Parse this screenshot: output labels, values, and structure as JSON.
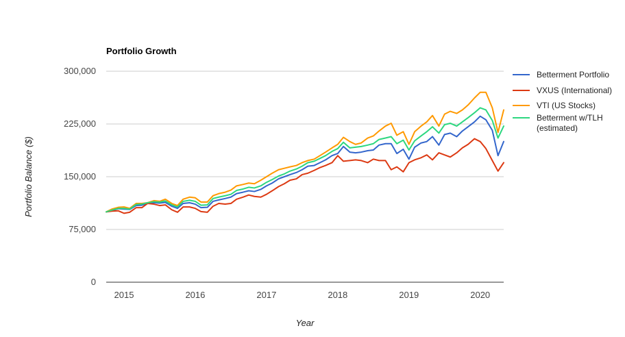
{
  "chart_data": {
    "type": "line",
    "title": "Portfolio Growth",
    "xlabel": "Year",
    "ylabel": "Portfolio Balance ($)",
    "ylim": [
      0,
      300000
    ],
    "yticks": [
      {
        "value": 0,
        "label": "0"
      },
      {
        "value": 75000,
        "label": "75,000"
      },
      {
        "value": 150000,
        "label": "150,000"
      },
      {
        "value": 225000,
        "label": "225,000"
      },
      {
        "value": 300000,
        "label": "300,000"
      }
    ],
    "xlim": [
      2014.75,
      2020.33
    ],
    "xticks": [
      {
        "value": 2015,
        "label": "2015"
      },
      {
        "value": 2016,
        "label": "2016"
      },
      {
        "value": 2017,
        "label": "2017"
      },
      {
        "value": 2018,
        "label": "2018"
      },
      {
        "value": 2019,
        "label": "2019"
      },
      {
        "value": 2020,
        "label": "2020"
      }
    ],
    "grid": true,
    "legend_position": "right",
    "x": [
      2014.75,
      2014.83,
      2014.92,
      2015.0,
      2015.08,
      2015.17,
      2015.25,
      2015.33,
      2015.42,
      2015.5,
      2015.58,
      2015.67,
      2015.75,
      2015.83,
      2015.92,
      2016.0,
      2016.08,
      2016.17,
      2016.25,
      2016.33,
      2016.42,
      2016.5,
      2016.58,
      2016.67,
      2016.75,
      2016.83,
      2016.92,
      2017.0,
      2017.08,
      2017.17,
      2017.25,
      2017.33,
      2017.42,
      2017.5,
      2017.58,
      2017.67,
      2017.75,
      2017.83,
      2017.92,
      2018.0,
      2018.08,
      2018.17,
      2018.25,
      2018.33,
      2018.42,
      2018.5,
      2018.58,
      2018.67,
      2018.75,
      2018.83,
      2018.92,
      2019.0,
      2019.08,
      2019.17,
      2019.25,
      2019.33,
      2019.42,
      2019.5,
      2019.58,
      2019.67,
      2019.75,
      2019.83,
      2019.92,
      2020.0,
      2020.08,
      2020.17,
      2020.25,
      2020.33
    ],
    "series": [
      {
        "name": "Betterment Portfolio",
        "color": "#3366cc",
        "values": [
          100000,
          102000,
          104500,
          104000,
          103500,
          109000,
          109500,
          112000,
          113000,
          112500,
          113500,
          108000,
          105000,
          112000,
          113000,
          111000,
          106000,
          106500,
          115000,
          117000,
          119000,
          121000,
          126000,
          128000,
          130000,
          129000,
          132000,
          137000,
          141000,
          147000,
          150000,
          153000,
          156000,
          160000,
          165000,
          166000,
          170000,
          174000,
          180000,
          183000,
          193000,
          185000,
          184000,
          185000,
          187000,
          188000,
          195000,
          197000,
          197000,
          183000,
          189000,
          175000,
          192000,
          198000,
          200000,
          207000,
          195000,
          210000,
          212000,
          207000,
          215000,
          221000,
          228000,
          236000,
          231000,
          216000,
          180000,
          200000
        ]
      },
      {
        "name": "VXUS (International)",
        "color": "#dc3912",
        "values": [
          100000,
          101000,
          101500,
          98000,
          99500,
          106000,
          106000,
          112000,
          111000,
          109000,
          110000,
          103000,
          99500,
          107000,
          107000,
          105000,
          100500,
          99500,
          108000,
          112000,
          111000,
          112000,
          118000,
          121000,
          124000,
          122000,
          121000,
          125000,
          130000,
          136000,
          140000,
          145000,
          147000,
          153000,
          155000,
          159000,
          163000,
          166000,
          170000,
          180000,
          172000,
          173000,
          174000,
          173000,
          170000,
          175000,
          173000,
          173000,
          160000,
          164000,
          157000,
          170000,
          174000,
          177000,
          181000,
          174000,
          184000,
          181000,
          178000,
          184000,
          191000,
          196000,
          204000,
          200000,
          190000,
          173000,
          158000,
          170000
        ]
      },
      {
        "name": "VTI (US Stocks)",
        "color": "#ff9900",
        "values": [
          100000,
          104000,
          106500,
          107000,
          105000,
          112000,
          112000,
          113000,
          116000,
          115000,
          118000,
          112000,
          109000,
          118000,
          121000,
          120000,
          114000,
          114000,
          123000,
          126000,
          128000,
          131000,
          137000,
          139000,
          141000,
          140000,
          145000,
          150000,
          155000,
          160000,
          162000,
          164000,
          166000,
          170000,
          173000,
          175000,
          180000,
          185000,
          191000,
          196000,
          206000,
          200000,
          196000,
          198000,
          205000,
          208000,
          215000,
          222000,
          226000,
          209000,
          214000,
          196000,
          214000,
          222000,
          228000,
          237000,
          222000,
          239000,
          243000,
          240000,
          245000,
          252000,
          262000,
          270000,
          270000,
          248000,
          213000,
          245000
        ]
      },
      {
        "name": "Betterment w/TLH (estimated)",
        "color": "#2cd77f",
        "values": [
          100000,
          102500,
          105000,
          105000,
          104000,
          110500,
          111000,
          113000,
          114500,
          114000,
          115500,
          110000,
          107000,
          115000,
          116500,
          115000,
          109500,
          110000,
          119000,
          121000,
          123000,
          125000,
          130500,
          132500,
          135000,
          134000,
          137000,
          142000,
          146000,
          151000,
          154000,
          158000,
          161000,
          165000,
          170000,
          172000,
          176000,
          180000,
          186000,
          190000,
          199000,
          191000,
          192000,
          193000,
          195000,
          197000,
          203000,
          205000,
          207000,
          197000,
          202000,
          188000,
          201000,
          208000,
          214000,
          221000,
          212000,
          224000,
          226000,
          222000,
          228000,
          234000,
          241000,
          248000,
          245000,
          230000,
          205000,
          222000
        ]
      }
    ]
  }
}
